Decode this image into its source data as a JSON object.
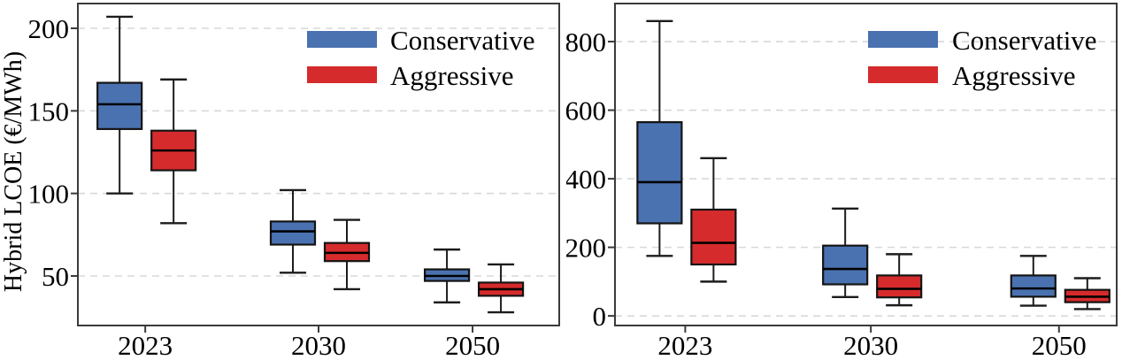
{
  "figure": {
    "background": "#ffffff",
    "axis_color": "#3a3a3a",
    "grid_color": "#d8d8d8",
    "text_color": "#000000",
    "conservative_color": "#4a72b0",
    "aggressive_color": "#d62b2c"
  },
  "chart_data": [
    {
      "type": "box",
      "title": "",
      "xlabel": "",
      "ylabel": "Hybrid LCOE (€/MWh)",
      "categories": [
        "2023",
        "2030",
        "2050"
      ],
      "yticks": [
        50,
        100,
        150,
        200
      ],
      "ylim": [
        20,
        215
      ],
      "grid": "horizontal-dashed",
      "legend_position": "top-right",
      "legend_frame": false,
      "series": [
        {
          "name": "Conservative",
          "color": "#4a72b0",
          "boxes": [
            {
              "whisker_low": 100,
              "q1": 139,
              "median": 154,
              "q3": 167,
              "whisker_high": 207
            },
            {
              "whisker_low": 52,
              "q1": 69,
              "median": 77,
              "q3": 83,
              "whisker_high": 102
            },
            {
              "whisker_low": 34,
              "q1": 47,
              "median": 50,
              "q3": 54,
              "whisker_high": 66
            }
          ]
        },
        {
          "name": "Aggressive",
          "color": "#d62b2c",
          "boxes": [
            {
              "whisker_low": 82,
              "q1": 114,
              "median": 126,
              "q3": 138,
              "whisker_high": 169
            },
            {
              "whisker_low": 42,
              "q1": 59,
              "median": 64,
              "q3": 70,
              "whisker_high": 84
            },
            {
              "whisker_low": 28,
              "q1": 38,
              "median": 42,
              "q3": 46,
              "whisker_high": 57
            }
          ]
        }
      ]
    },
    {
      "type": "box",
      "title": "",
      "xlabel": "",
      "ylabel": "",
      "categories": [
        "2023",
        "2030",
        "2050"
      ],
      "yticks": [
        0,
        200,
        400,
        600,
        800
      ],
      "ylim": [
        -28,
        911
      ],
      "grid": "horizontal-dashed",
      "legend_position": "top-right",
      "legend_frame": false,
      "series": [
        {
          "name": "Conservative",
          "color": "#4a72b0",
          "boxes": [
            {
              "whisker_low": 175,
              "q1": 270,
              "median": 390,
              "q3": 565,
              "whisker_high": 860
            },
            {
              "whisker_low": 55,
              "q1": 92,
              "median": 137,
              "q3": 205,
              "whisker_high": 313
            },
            {
              "whisker_low": 30,
              "q1": 56,
              "median": 80,
              "q3": 118,
              "whisker_high": 175
            }
          ]
        },
        {
          "name": "Aggressive",
          "color": "#d62b2c",
          "boxes": [
            {
              "whisker_low": 100,
              "q1": 150,
              "median": 213,
              "q3": 310,
              "whisker_high": 460
            },
            {
              "whisker_low": 31,
              "q1": 54,
              "median": 79,
              "q3": 118,
              "whisker_high": 180
            },
            {
              "whisker_low": 20,
              "q1": 40,
              "median": 56,
              "q3": 76,
              "whisker_high": 110
            }
          ]
        }
      ]
    }
  ]
}
